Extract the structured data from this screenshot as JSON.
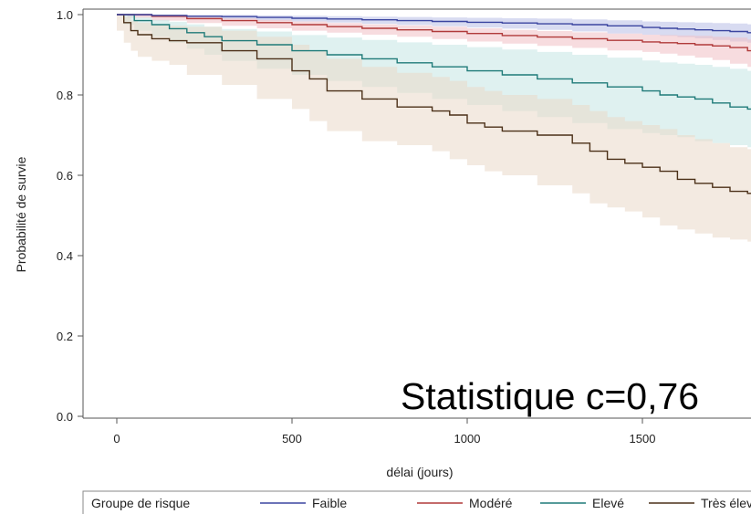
{
  "chart_data": {
    "type": "line",
    "step": true,
    "xlabel": "délai (jours)",
    "ylabel": "Probabilité de survie",
    "xlim": [
      -100,
      1830
    ],
    "ylim": [
      -0.01,
      1.02
    ],
    "xticks": [
      0,
      500,
      1000,
      1500
    ],
    "xtick_labels": [
      "0",
      "500",
      "1000",
      "1500"
    ],
    "yticks": [
      0.0,
      0.2,
      0.4,
      0.6,
      0.8,
      1.0
    ],
    "ytick_labels": [
      "0.0",
      "0.2",
      "0.4",
      "0.6",
      "0.8",
      "1.0"
    ],
    "grid": false,
    "legend": {
      "title": "Groupe de risque",
      "placement": "bottom",
      "entries": [
        "Faible",
        "Modéré",
        "Elevé",
        "Très élevé"
      ]
    },
    "annotations": [
      "Statistique c=0,76"
    ],
    "series": [
      {
        "name": "Faible",
        "color": "#3b45a0",
        "band_color": "#b8bde6",
        "x": [
          0,
          30,
          100,
          200,
          300,
          400,
          500,
          600,
          700,
          800,
          900,
          1000,
          1100,
          1200,
          1300,
          1400,
          1500,
          1550,
          1600,
          1650,
          1700,
          1750,
          1800,
          1830
        ],
        "y": [
          1.0,
          1.0,
          0.998,
          0.996,
          0.995,
          0.993,
          0.991,
          0.989,
          0.987,
          0.985,
          0.983,
          0.981,
          0.979,
          0.977,
          0.975,
          0.972,
          0.968,
          0.966,
          0.964,
          0.962,
          0.96,
          0.958,
          0.955,
          0.953
        ],
        "lower": [
          1.0,
          1.0,
          0.996,
          0.993,
          0.991,
          0.988,
          0.985,
          0.983,
          0.98,
          0.977,
          0.974,
          0.971,
          0.968,
          0.965,
          0.962,
          0.958,
          0.953,
          0.95,
          0.947,
          0.944,
          0.941,
          0.937,
          0.933,
          0.93
        ],
        "upper": [
          1.0,
          1.0,
          1.0,
          0.999,
          0.999,
          0.998,
          0.997,
          0.996,
          0.995,
          0.994,
          0.993,
          0.992,
          0.991,
          0.99,
          0.988,
          0.986,
          0.983,
          0.982,
          0.981,
          0.98,
          0.979,
          0.978,
          0.976,
          0.975
        ]
      },
      {
        "name": "Modéré",
        "color": "#b03a3a",
        "band_color": "#f0c0c4",
        "x": [
          0,
          30,
          100,
          200,
          300,
          400,
          500,
          600,
          700,
          800,
          900,
          1000,
          1100,
          1200,
          1300,
          1400,
          1500,
          1550,
          1600,
          1650,
          1700,
          1750,
          1800,
          1830
        ],
        "y": [
          1.0,
          1.0,
          0.996,
          0.99,
          0.985,
          0.98,
          0.975,
          0.97,
          0.966,
          0.962,
          0.958,
          0.953,
          0.948,
          0.944,
          0.94,
          0.936,
          0.932,
          0.93,
          0.928,
          0.925,
          0.922,
          0.918,
          0.91,
          0.905
        ],
        "lower": [
          1.0,
          1.0,
          0.992,
          0.985,
          0.979,
          0.972,
          0.966,
          0.96,
          0.955,
          0.95,
          0.945,
          0.939,
          0.933,
          0.928,
          0.922,
          0.917,
          0.911,
          0.907,
          0.903,
          0.898,
          0.893,
          0.887,
          0.878,
          0.87
        ],
        "upper": [
          1.0,
          1.0,
          0.999,
          0.995,
          0.991,
          0.987,
          0.983,
          0.979,
          0.976,
          0.973,
          0.97,
          0.966,
          0.962,
          0.959,
          0.956,
          0.953,
          0.95,
          0.949,
          0.948,
          0.947,
          0.945,
          0.943,
          0.938,
          0.934
        ]
      },
      {
        "name": "Elevé",
        "color": "#1f7a78",
        "band_color": "#c5e6e4",
        "x": [
          0,
          20,
          50,
          100,
          150,
          200,
          250,
          300,
          400,
          500,
          600,
          700,
          800,
          900,
          1000,
          1100,
          1200,
          1300,
          1400,
          1500,
          1550,
          1600,
          1650,
          1700,
          1750,
          1800,
          1830
        ],
        "y": [
          1.0,
          1.0,
          0.985,
          0.975,
          0.965,
          0.955,
          0.945,
          0.935,
          0.925,
          0.91,
          0.9,
          0.89,
          0.88,
          0.87,
          0.86,
          0.85,
          0.84,
          0.83,
          0.82,
          0.81,
          0.8,
          0.795,
          0.79,
          0.78,
          0.77,
          0.765,
          0.76
        ],
        "lower": [
          1.0,
          1.0,
          0.975,
          0.96,
          0.945,
          0.93,
          0.915,
          0.9,
          0.885,
          0.865,
          0.85,
          0.835,
          0.82,
          0.805,
          0.79,
          0.775,
          0.76,
          0.745,
          0.73,
          0.715,
          0.705,
          0.7,
          0.695,
          0.685,
          0.68,
          0.675,
          0.67
        ],
        "upper": [
          1.0,
          1.0,
          0.993,
          0.987,
          0.982,
          0.976,
          0.97,
          0.964,
          0.958,
          0.949,
          0.943,
          0.937,
          0.931,
          0.925,
          0.919,
          0.913,
          0.907,
          0.9,
          0.893,
          0.886,
          0.881,
          0.878,
          0.875,
          0.87,
          0.865,
          0.86,
          0.858
        ]
      },
      {
        "name": "Très élevé",
        "color": "#4b3018",
        "band_color": "#ead8c9",
        "x": [
          0,
          20,
          40,
          60,
          100,
          150,
          200,
          300,
          400,
          500,
          550,
          600,
          700,
          800,
          900,
          950,
          1000,
          1050,
          1100,
          1200,
          1300,
          1350,
          1400,
          1450,
          1500,
          1550,
          1600,
          1650,
          1700,
          1750,
          1800,
          1830
        ],
        "y": [
          1.0,
          0.98,
          0.96,
          0.95,
          0.94,
          0.935,
          0.93,
          0.91,
          0.89,
          0.86,
          0.84,
          0.81,
          0.79,
          0.77,
          0.76,
          0.75,
          0.73,
          0.72,
          0.71,
          0.7,
          0.68,
          0.66,
          0.64,
          0.63,
          0.62,
          0.61,
          0.59,
          0.58,
          0.57,
          0.56,
          0.555,
          0.55
        ],
        "lower": [
          1.0,
          0.96,
          0.93,
          0.91,
          0.895,
          0.885,
          0.875,
          0.85,
          0.825,
          0.79,
          0.765,
          0.735,
          0.71,
          0.685,
          0.675,
          0.66,
          0.64,
          0.625,
          0.61,
          0.6,
          0.575,
          0.555,
          0.53,
          0.52,
          0.51,
          0.495,
          0.475,
          0.465,
          0.455,
          0.445,
          0.44,
          0.435
        ],
        "upper": [
          1.0,
          0.995,
          0.985,
          0.98,
          0.975,
          0.972,
          0.97,
          0.96,
          0.945,
          0.925,
          0.91,
          0.89,
          0.87,
          0.855,
          0.845,
          0.835,
          0.82,
          0.81,
          0.8,
          0.79,
          0.775,
          0.76,
          0.745,
          0.735,
          0.725,
          0.715,
          0.7,
          0.69,
          0.68,
          0.67,
          0.665,
          0.66
        ]
      }
    ]
  }
}
